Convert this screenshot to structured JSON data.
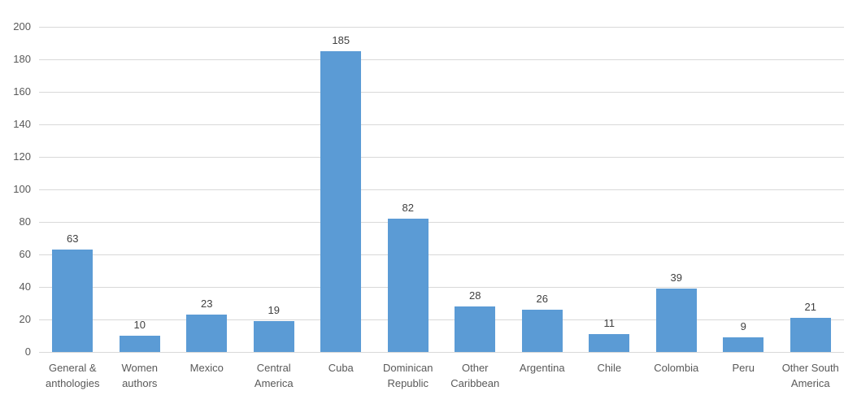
{
  "chart_data": {
    "type": "bar",
    "title": "",
    "categories": [
      "General & anthologies",
      "Women authors",
      "Mexico",
      "Central America",
      "Cuba",
      "Dominican Republic",
      "Other Caribbean",
      "Argentina",
      "Chile",
      "Colombia",
      "Peru",
      "Other South America"
    ],
    "values": [
      63,
      10,
      23,
      19,
      185,
      82,
      28,
      26,
      11,
      39,
      9,
      21
    ],
    "data_labels": [
      63,
      10,
      23,
      19,
      185,
      82,
      28,
      26,
      11,
      39,
      9,
      21
    ],
    "yticks": [
      0,
      20,
      40,
      60,
      80,
      100,
      120,
      140,
      160,
      180,
      200
    ],
    "ylim": [
      0,
      200
    ],
    "xlabel": "",
    "ylabel": "",
    "grid": "horizontal",
    "legend": "none",
    "colors": {
      "bar_fill": "#5b9bd5",
      "gridline": "#d9d9d9",
      "axis_text": "#595959",
      "data_label_text": "#404040",
      "background": "#ffffff"
    }
  }
}
